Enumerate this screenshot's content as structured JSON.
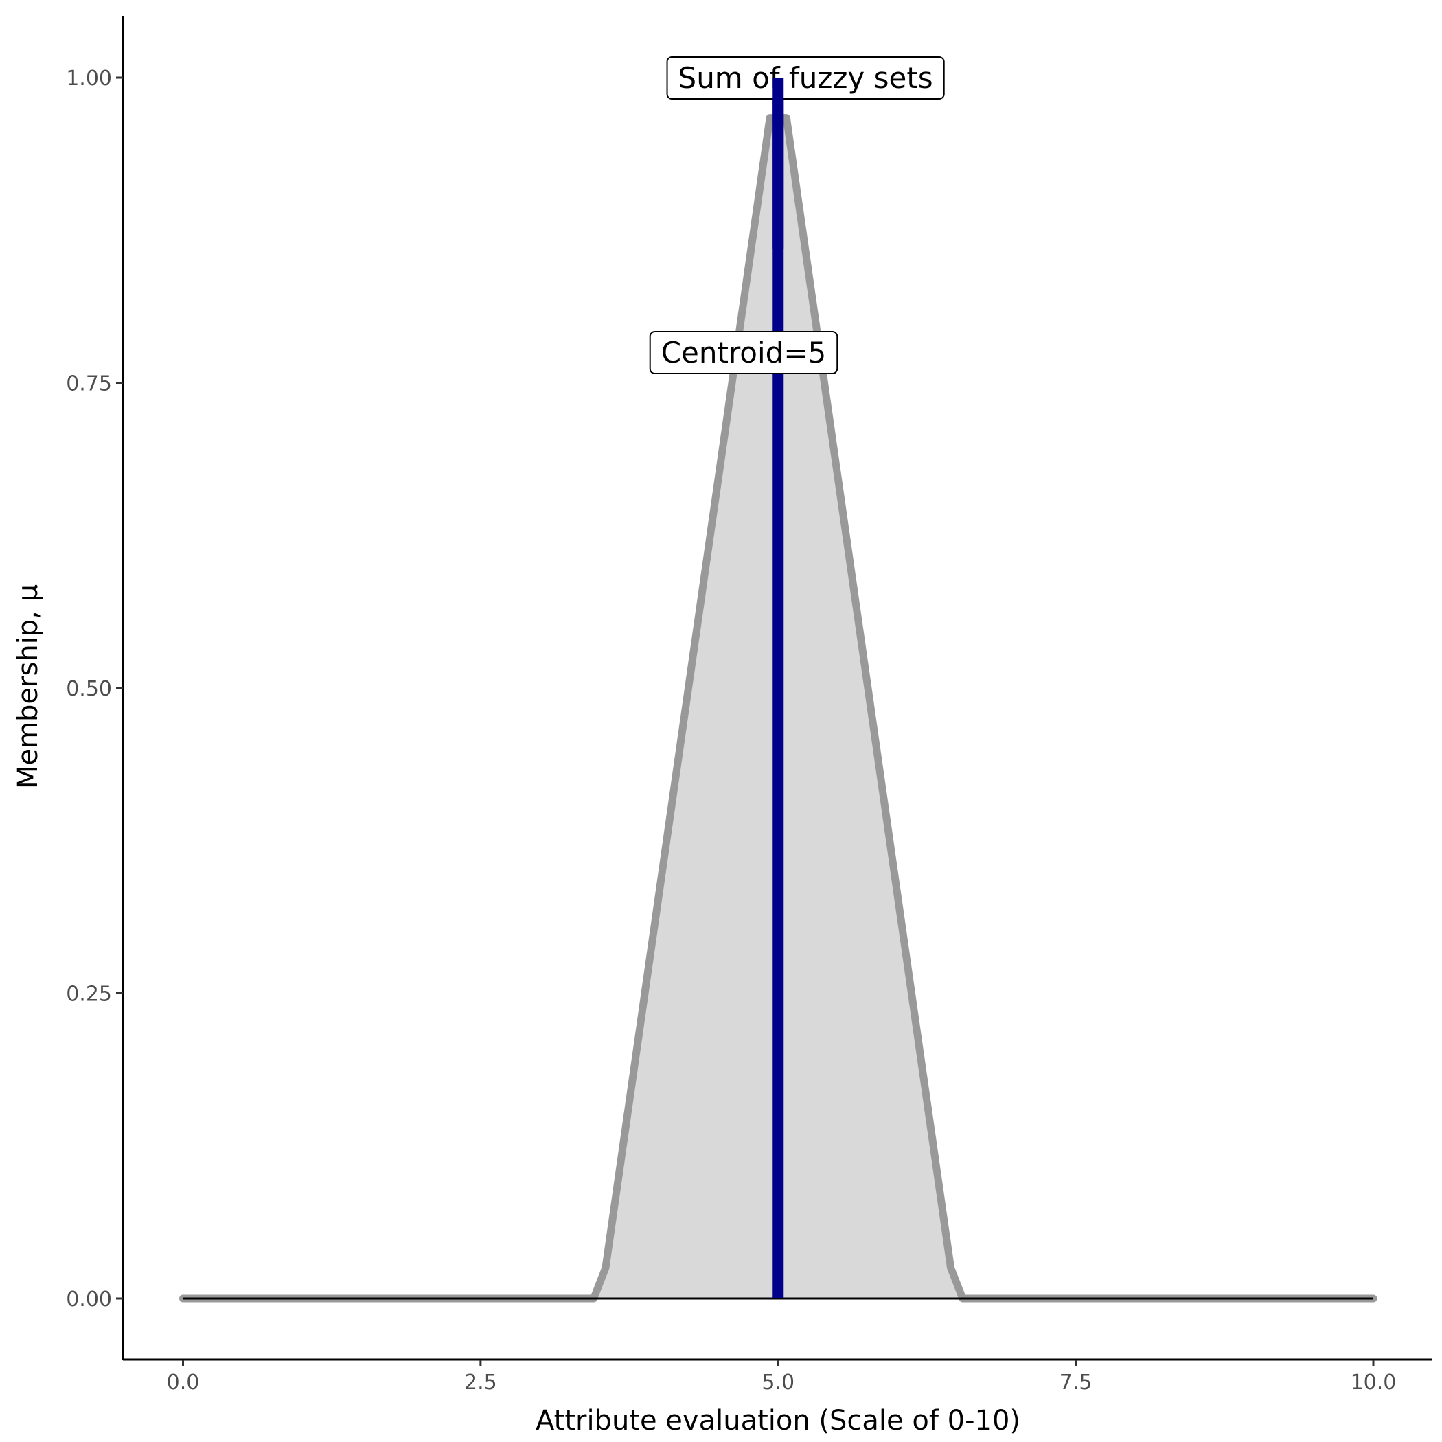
{
  "chart_data": {
    "type": "area",
    "title": "",
    "xlabel": "Attribute evaluation (Scale of 0-10)",
    "ylabel": "Membership, μ",
    "xlim": [
      -0.5,
      10.5
    ],
    "ylim": [
      -0.05,
      1.05
    ],
    "xticks": [
      0,
      2.5,
      5,
      7.5,
      10
    ],
    "xtick_labels": [
      "0.0",
      "2.5",
      "5.0",
      "7.5",
      "10.0"
    ],
    "yticks": [
      0,
      0.25,
      0.5,
      0.75,
      1
    ],
    "ytick_labels": [
      "0.00",
      "0.25",
      "0.50",
      "0.75",
      "1.00"
    ],
    "grid": false,
    "series": [
      {
        "x": [
          0,
          3.45,
          3.55,
          4.93,
          5.07,
          6.45,
          6.55,
          10
        ],
        "y": [
          0,
          0,
          0.025,
          0.967,
          0.967,
          0.025,
          0,
          0
        ],
        "fill": "#d9d9d9",
        "stroke": "#999999"
      }
    ],
    "baseline": {
      "y": 0,
      "color": "#000000"
    },
    "centroid_line": {
      "x": 5,
      "y_from": 0,
      "y_to": 1,
      "color": "#00008B"
    },
    "annotations": [
      {
        "text": "Sum of fuzzy sets",
        "x": 5.23,
        "y": 1.0
      },
      {
        "text": "Centroid=5",
        "x": 4.71,
        "y": 0.775
      }
    ]
  }
}
